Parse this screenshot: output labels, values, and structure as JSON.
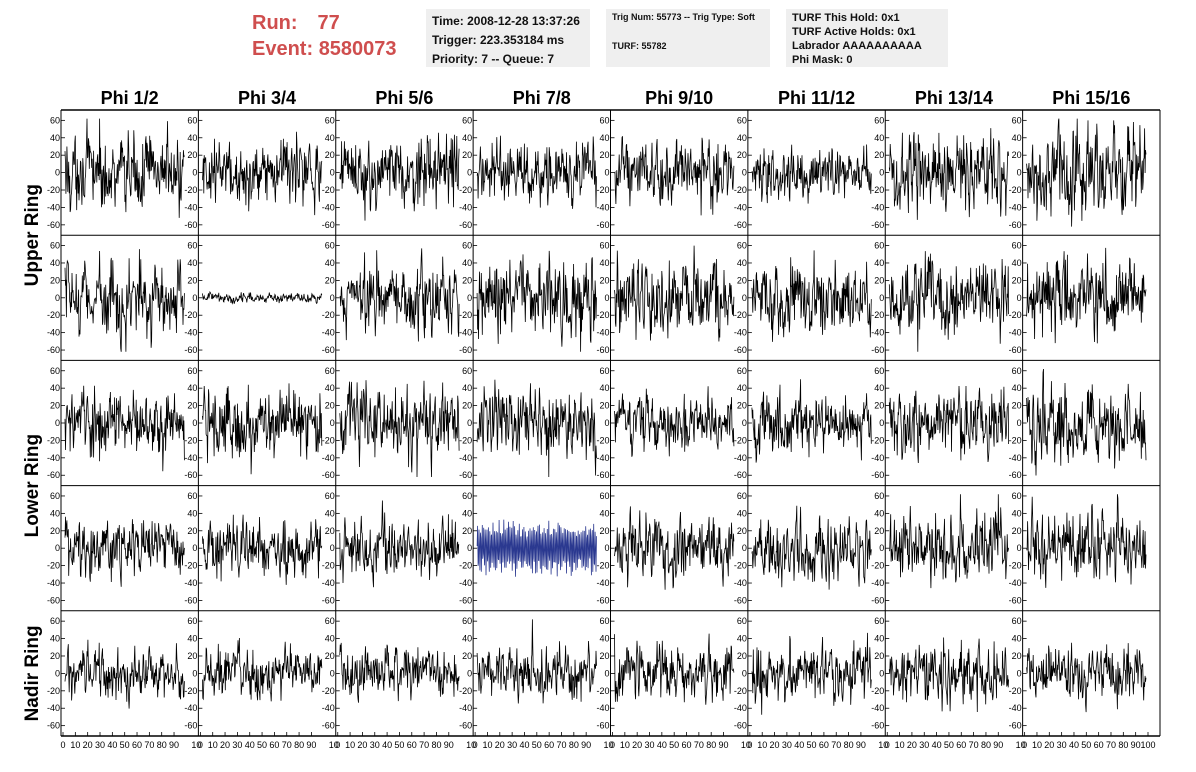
{
  "header": {
    "run_label": "Run:",
    "run_value": "77",
    "event_label": "Event:",
    "event_value": "8580073",
    "time": "Time: 2008-12-28 13:37:26",
    "trigger": "Trigger: 223.353184 ms",
    "priority": "Priority: 7 -- Queue: 7",
    "trig_num": "Trig Num: 55773 -- Trig Type: Soft",
    "turf": "TURF: 55782",
    "turf_hold": "TURF This Hold: 0x1",
    "turf_active": "TURF Active Holds: 0x1",
    "labrador": "Labrador AAAAAAAAAA",
    "phi_mask": "Phi Mask: 0"
  },
  "chart_data": {
    "type": "line",
    "columns": [
      "Phi 1/2",
      "Phi 3/4",
      "Phi 5/6",
      "Phi 7/8",
      "Phi 9/10",
      "Phi 11/12",
      "Phi 13/14",
      "Phi 15/16"
    ],
    "rows": [
      "Upper Ring",
      "Upper Ring",
      "Lower Ring",
      "Lower Ring",
      "Nadir Ring"
    ],
    "row_labels": [
      {
        "label": "Upper Ring",
        "rows": [
          0,
          1
        ]
      },
      {
        "label": "Lower Ring",
        "rows": [
          2,
          3
        ]
      },
      {
        "label": "Nadir Ring",
        "rows": [
          4
        ]
      }
    ],
    "ylim": [
      -65,
      65
    ],
    "yticks": [
      -60,
      -40,
      -20,
      0,
      20,
      40,
      60
    ],
    "xlim": [
      0,
      100
    ],
    "xtick_labels": [
      "0",
      "10",
      "20",
      "30",
      "40",
      "50",
      "60",
      "70",
      "80",
      "90",
      "100"
    ],
    "samples_per_trace": 256,
    "trace_color": "#000000",
    "highlight_color": "#2b3990",
    "highlight": {
      "row": 3,
      "col": 3
    },
    "waveform_amplitudes": [
      [
        30,
        24,
        28,
        24,
        26,
        20,
        30,
        34
      ],
      [
        30,
        4,
        28,
        30,
        30,
        28,
        30,
        32
      ],
      [
        26,
        28,
        28,
        28,
        22,
        24,
        28,
        30
      ],
      [
        24,
        22,
        24,
        32,
        26,
        26,
        26,
        28
      ],
      [
        20,
        20,
        20,
        20,
        22,
        24,
        24,
        22
      ]
    ]
  }
}
